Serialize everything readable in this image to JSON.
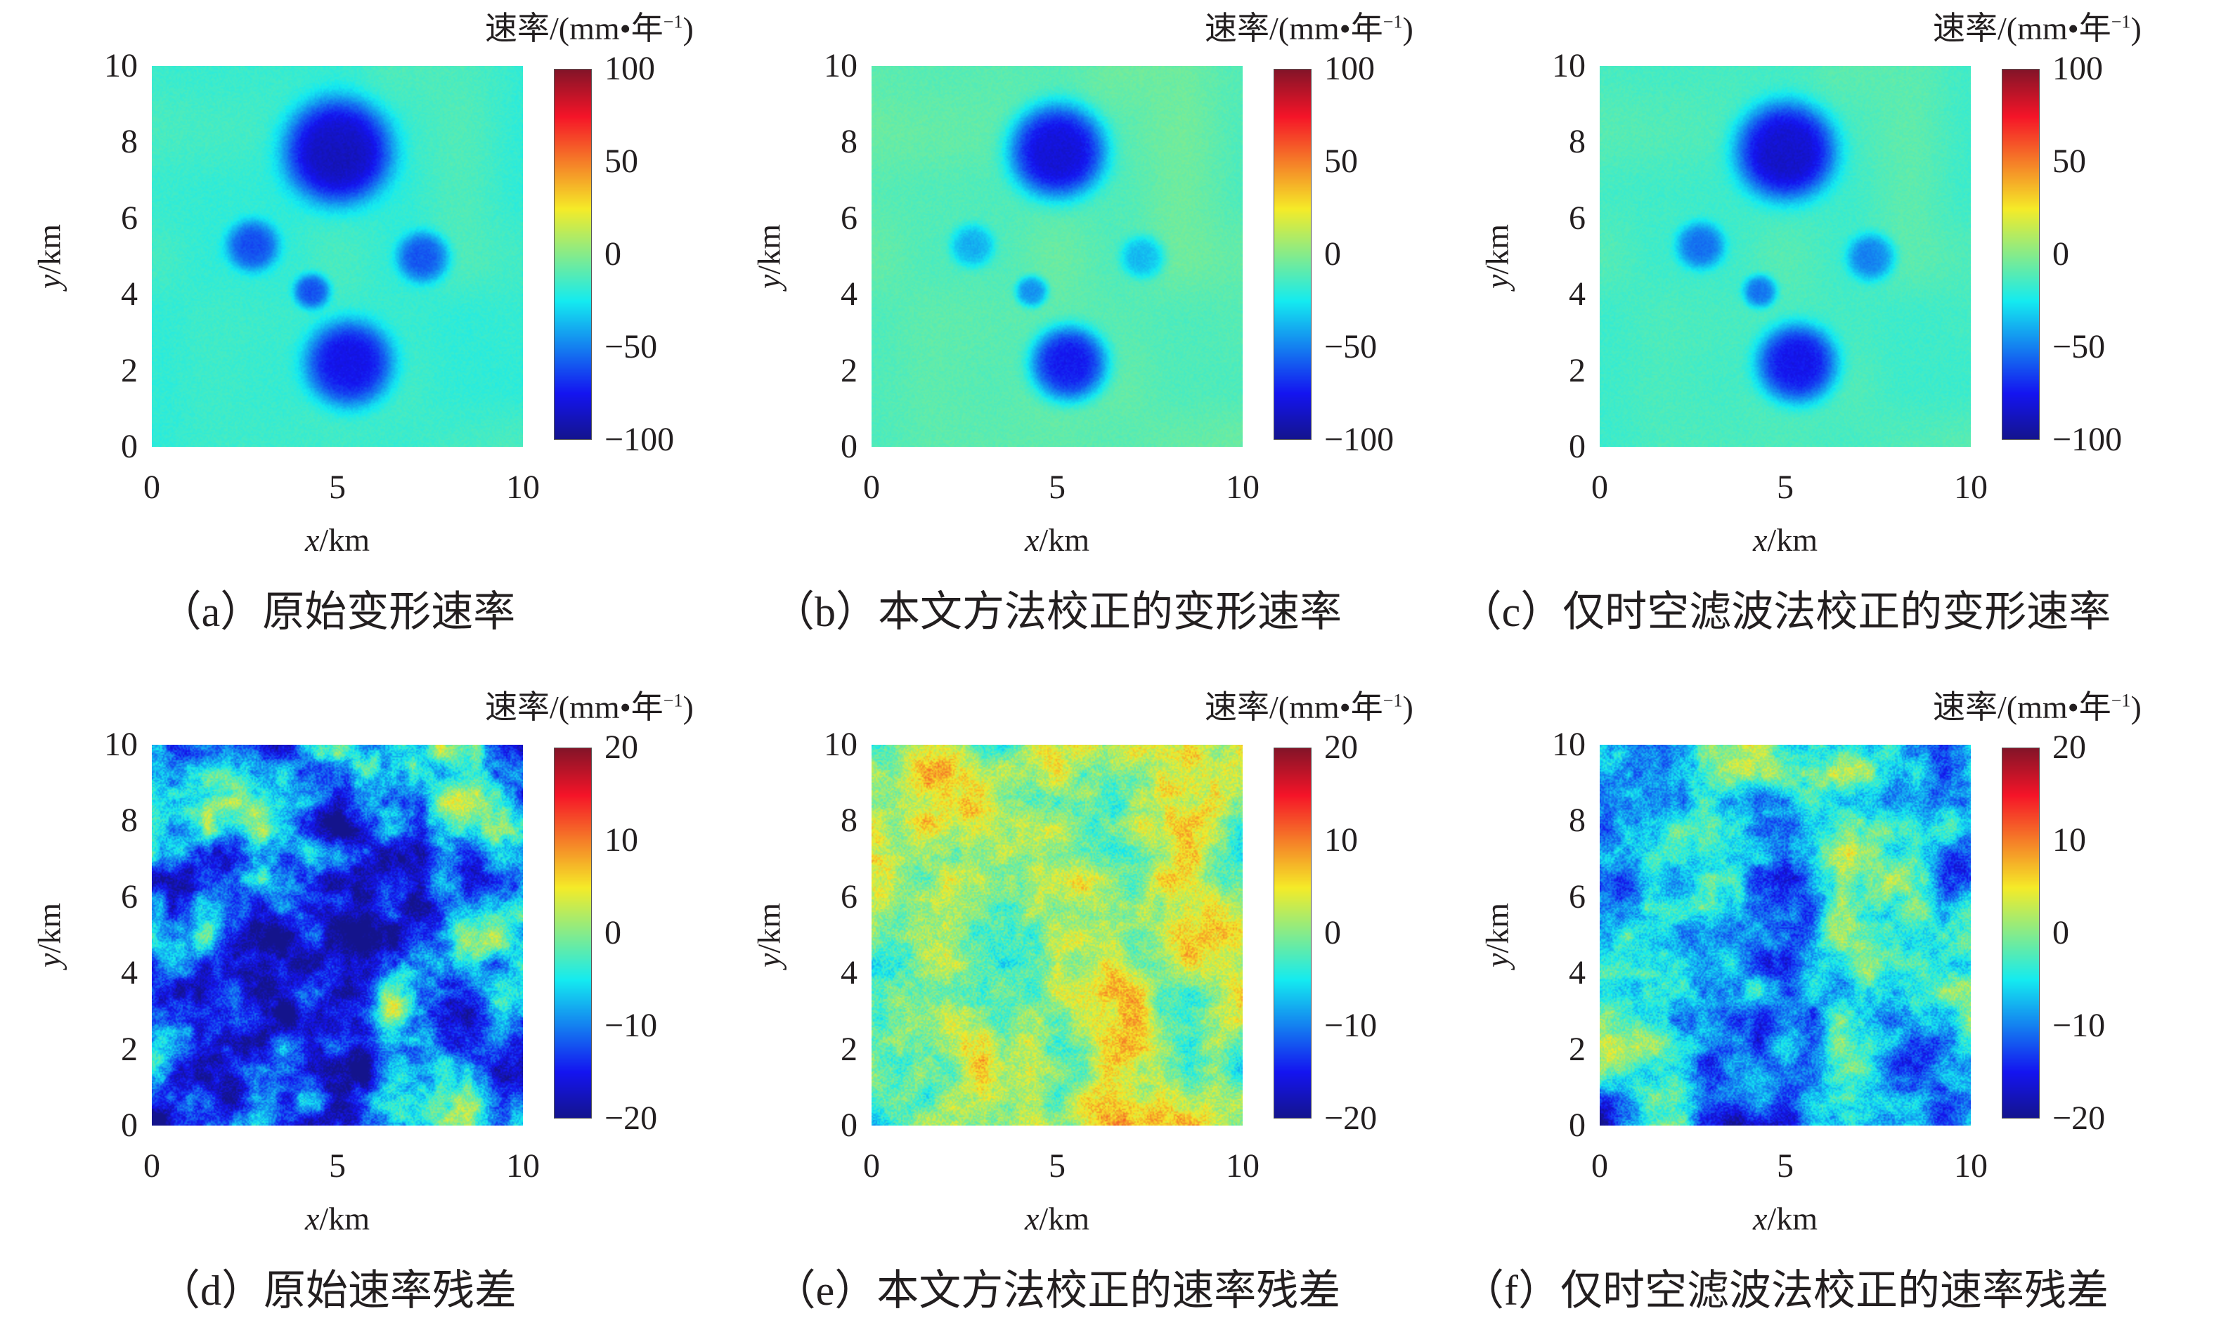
{
  "colorbar_unit": {
    "prefix": "速率/(mm•年",
    "sup": "−1",
    "suffix": ")"
  },
  "x_axis_label": {
    "var": "x",
    "unit": "/km"
  },
  "y_axis_label": {
    "var": "y",
    "unit": "/km"
  },
  "chart_data": [
    {
      "type": "heatmap",
      "caption": "（a）原始变形速率",
      "xlim": [
        0,
        10
      ],
      "ylim": [
        0,
        10
      ],
      "xticks": [
        "0",
        "5",
        "10"
      ],
      "yticks": [
        "0",
        "2",
        "4",
        "6",
        "8",
        "10"
      ],
      "clim": [
        -100,
        100
      ],
      "cticks": [
        "100",
        "50",
        "0",
        "−50",
        "−100"
      ],
      "colormap": "jet",
      "background": -15,
      "noise": 3,
      "subsidence_centers": [
        {
          "x": 5,
          "y": 7.8,
          "r": 1.35,
          "v": -88
        },
        {
          "x": 5.3,
          "y": 2.2,
          "r": 1.1,
          "v": -78
        },
        {
          "x": 2.7,
          "y": 5.3,
          "r": 0.65,
          "v": -58
        },
        {
          "x": 7.3,
          "y": 5.0,
          "r": 0.65,
          "v": -58
        },
        {
          "x": 4.3,
          "y": 4.1,
          "r": 0.45,
          "v": -60
        }
      ]
    },
    {
      "type": "heatmap",
      "caption": "（b）本文方法校正的变形速率",
      "xlim": [
        0,
        10
      ],
      "ylim": [
        0,
        10
      ],
      "xticks": [
        "0",
        "5",
        "10"
      ],
      "yticks": [
        "0",
        "2",
        "4",
        "6",
        "8",
        "10"
      ],
      "clim": [
        -100,
        100
      ],
      "cticks": [
        "100",
        "50",
        "0",
        "−50",
        "−100"
      ],
      "colormap": "jet",
      "background": -8,
      "noise": 3,
      "subsidence_centers": [
        {
          "x": 5,
          "y": 7.8,
          "r": 1.2,
          "v": -82
        },
        {
          "x": 5.3,
          "y": 2.2,
          "r": 0.95,
          "v": -75
        },
        {
          "x": 2.7,
          "y": 5.3,
          "r": 0.55,
          "v": -35
        },
        {
          "x": 7.3,
          "y": 5.0,
          "r": 0.55,
          "v": -35
        },
        {
          "x": 4.3,
          "y": 4.1,
          "r": 0.4,
          "v": -45
        }
      ]
    },
    {
      "type": "heatmap",
      "caption": "（c）仅时空滤波法校正的变形速率",
      "xlim": [
        0,
        10
      ],
      "ylim": [
        0,
        10
      ],
      "xticks": [
        "0",
        "5",
        "10"
      ],
      "yticks": [
        "0",
        "2",
        "4",
        "6",
        "8",
        "10"
      ],
      "clim": [
        -100,
        100
      ],
      "cticks": [
        "100",
        "50",
        "0",
        "−50",
        "−100"
      ],
      "colormap": "jet",
      "background": -12,
      "noise": 3,
      "subsidence_centers": [
        {
          "x": 5,
          "y": 7.8,
          "r": 1.25,
          "v": -85
        },
        {
          "x": 5.3,
          "y": 2.2,
          "r": 1.0,
          "v": -77
        },
        {
          "x": 2.7,
          "y": 5.3,
          "r": 0.6,
          "v": -50
        },
        {
          "x": 7.3,
          "y": 5.0,
          "r": 0.6,
          "v": -48
        },
        {
          "x": 4.3,
          "y": 4.1,
          "r": 0.42,
          "v": -52
        }
      ]
    },
    {
      "type": "heatmap",
      "caption": "（d）原始速率残差",
      "xlim": [
        0,
        10
      ],
      "ylim": [
        0,
        10
      ],
      "xticks": [
        "0",
        "5",
        "10"
      ],
      "yticks": [
        "0",
        "2",
        "4",
        "6",
        "8",
        "10"
      ],
      "clim": [
        -20,
        20
      ],
      "cticks": [
        "20",
        "10",
        "0",
        "−10",
        "−20"
      ],
      "colormap": "jet",
      "mean": -10,
      "spread": 9,
      "seed": 11,
      "subsidence_centers": []
    },
    {
      "type": "heatmap",
      "caption": "（e）本文方法校正的速率残差",
      "xlim": [
        0,
        10
      ],
      "ylim": [
        0,
        10
      ],
      "xticks": [
        "0",
        "5",
        "10"
      ],
      "yticks": [
        "0",
        "2",
        "4",
        "6",
        "8",
        "10"
      ],
      "clim": [
        -20,
        20
      ],
      "cticks": [
        "20",
        "10",
        "0",
        "−10",
        "−20"
      ],
      "colormap": "jet",
      "mean": 2,
      "spread": 5,
      "seed": 23,
      "subsidence_centers": []
    },
    {
      "type": "heatmap",
      "caption": "（f）仅时空滤波法校正的速率残差",
      "xlim": [
        0,
        10
      ],
      "ylim": [
        0,
        10
      ],
      "xticks": [
        "0",
        "5",
        "10"
      ],
      "yticks": [
        "0",
        "2",
        "4",
        "6",
        "8",
        "10"
      ],
      "clim": [
        -20,
        20
      ],
      "cticks": [
        "20",
        "10",
        "0",
        "−10",
        "−20"
      ],
      "colormap": "jet",
      "mean": -7,
      "spread": 7,
      "seed": 37,
      "subsidence_centers": []
    }
  ]
}
